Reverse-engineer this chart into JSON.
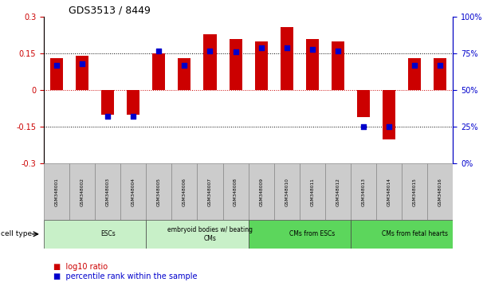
{
  "title": "GDS3513 / 8449",
  "samples": [
    "GSM348001",
    "GSM348002",
    "GSM348003",
    "GSM348004",
    "GSM348005",
    "GSM348006",
    "GSM348007",
    "GSM348008",
    "GSM348009",
    "GSM348010",
    "GSM348011",
    "GSM348012",
    "GSM348013",
    "GSM348014",
    "GSM348015",
    "GSM348016"
  ],
  "log10_ratio": [
    0.13,
    0.14,
    -0.1,
    -0.1,
    0.15,
    0.13,
    0.23,
    0.21,
    0.2,
    0.26,
    0.21,
    0.2,
    -0.11,
    -0.2,
    0.13,
    0.13
  ],
  "percentile_rank": [
    67,
    68,
    32,
    32,
    77,
    67,
    77,
    76,
    79,
    79,
    78,
    77,
    25,
    25,
    67,
    67
  ],
  "cell_types": [
    {
      "label": "ESCs",
      "start": 0,
      "end": 4,
      "color": "#C8F0C8"
    },
    {
      "label": "embryoid bodies w/ beating\nCMs",
      "start": 4,
      "end": 8,
      "color": "#C8F0C8"
    },
    {
      "label": "CMs from ESCs",
      "start": 8,
      "end": 12,
      "color": "#5CD65C"
    },
    {
      "label": "CMs from fetal hearts",
      "start": 12,
      "end": 16,
      "color": "#5CD65C"
    }
  ],
  "ylim_left": [
    -0.3,
    0.3
  ],
  "ylim_right": [
    0,
    100
  ],
  "yticks_left": [
    -0.3,
    -0.15,
    0,
    0.15,
    0.3
  ],
  "yticks_right": [
    0,
    25,
    50,
    75,
    100
  ],
  "left_color": "#CC0000",
  "right_color": "#0000CC",
  "bar_color": "#CC0000",
  "dot_color": "#0000CC",
  "hline_color_zero": "#CC0000",
  "hline_color_15": "#000000",
  "bar_width": 0.5,
  "dot_size": 18
}
